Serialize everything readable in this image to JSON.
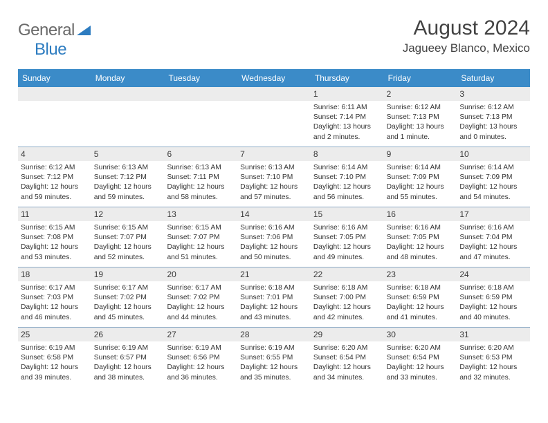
{
  "brand": {
    "part1": "General",
    "part2": "Blue"
  },
  "title": "August 2024",
  "location": "Jagueey Blanco, Mexico",
  "colors": {
    "header_bar": "#3b8bc8",
    "header_text": "#ffffff",
    "daynum_bg": "#ececec",
    "divider": "#8aa9c5",
    "logo_gray": "#6a6a6a",
    "logo_blue": "#2d7cc0"
  },
  "dow": [
    "Sunday",
    "Monday",
    "Tuesday",
    "Wednesday",
    "Thursday",
    "Friday",
    "Saturday"
  ],
  "weeks": [
    [
      null,
      null,
      null,
      null,
      {
        "n": "1",
        "sr": "6:11 AM",
        "ss": "7:14 PM",
        "dl": "13 hours and 2 minutes."
      },
      {
        "n": "2",
        "sr": "6:12 AM",
        "ss": "7:13 PM",
        "dl": "13 hours and 1 minute."
      },
      {
        "n": "3",
        "sr": "6:12 AM",
        "ss": "7:13 PM",
        "dl": "13 hours and 0 minutes."
      }
    ],
    [
      {
        "n": "4",
        "sr": "6:12 AM",
        "ss": "7:12 PM",
        "dl": "12 hours and 59 minutes."
      },
      {
        "n": "5",
        "sr": "6:13 AM",
        "ss": "7:12 PM",
        "dl": "12 hours and 59 minutes."
      },
      {
        "n": "6",
        "sr": "6:13 AM",
        "ss": "7:11 PM",
        "dl": "12 hours and 58 minutes."
      },
      {
        "n": "7",
        "sr": "6:13 AM",
        "ss": "7:10 PM",
        "dl": "12 hours and 57 minutes."
      },
      {
        "n": "8",
        "sr": "6:14 AM",
        "ss": "7:10 PM",
        "dl": "12 hours and 56 minutes."
      },
      {
        "n": "9",
        "sr": "6:14 AM",
        "ss": "7:09 PM",
        "dl": "12 hours and 55 minutes."
      },
      {
        "n": "10",
        "sr": "6:14 AM",
        "ss": "7:09 PM",
        "dl": "12 hours and 54 minutes."
      }
    ],
    [
      {
        "n": "11",
        "sr": "6:15 AM",
        "ss": "7:08 PM",
        "dl": "12 hours and 53 minutes."
      },
      {
        "n": "12",
        "sr": "6:15 AM",
        "ss": "7:07 PM",
        "dl": "12 hours and 52 minutes."
      },
      {
        "n": "13",
        "sr": "6:15 AM",
        "ss": "7:07 PM",
        "dl": "12 hours and 51 minutes."
      },
      {
        "n": "14",
        "sr": "6:16 AM",
        "ss": "7:06 PM",
        "dl": "12 hours and 50 minutes."
      },
      {
        "n": "15",
        "sr": "6:16 AM",
        "ss": "7:05 PM",
        "dl": "12 hours and 49 minutes."
      },
      {
        "n": "16",
        "sr": "6:16 AM",
        "ss": "7:05 PM",
        "dl": "12 hours and 48 minutes."
      },
      {
        "n": "17",
        "sr": "6:16 AM",
        "ss": "7:04 PM",
        "dl": "12 hours and 47 minutes."
      }
    ],
    [
      {
        "n": "18",
        "sr": "6:17 AM",
        "ss": "7:03 PM",
        "dl": "12 hours and 46 minutes."
      },
      {
        "n": "19",
        "sr": "6:17 AM",
        "ss": "7:02 PM",
        "dl": "12 hours and 45 minutes."
      },
      {
        "n": "20",
        "sr": "6:17 AM",
        "ss": "7:02 PM",
        "dl": "12 hours and 44 minutes."
      },
      {
        "n": "21",
        "sr": "6:18 AM",
        "ss": "7:01 PM",
        "dl": "12 hours and 43 minutes."
      },
      {
        "n": "22",
        "sr": "6:18 AM",
        "ss": "7:00 PM",
        "dl": "12 hours and 42 minutes."
      },
      {
        "n": "23",
        "sr": "6:18 AM",
        "ss": "6:59 PM",
        "dl": "12 hours and 41 minutes."
      },
      {
        "n": "24",
        "sr": "6:18 AM",
        "ss": "6:59 PM",
        "dl": "12 hours and 40 minutes."
      }
    ],
    [
      {
        "n": "25",
        "sr": "6:19 AM",
        "ss": "6:58 PM",
        "dl": "12 hours and 39 minutes."
      },
      {
        "n": "26",
        "sr": "6:19 AM",
        "ss": "6:57 PM",
        "dl": "12 hours and 38 minutes."
      },
      {
        "n": "27",
        "sr": "6:19 AM",
        "ss": "6:56 PM",
        "dl": "12 hours and 36 minutes."
      },
      {
        "n": "28",
        "sr": "6:19 AM",
        "ss": "6:55 PM",
        "dl": "12 hours and 35 minutes."
      },
      {
        "n": "29",
        "sr": "6:20 AM",
        "ss": "6:54 PM",
        "dl": "12 hours and 34 minutes."
      },
      {
        "n": "30",
        "sr": "6:20 AM",
        "ss": "6:54 PM",
        "dl": "12 hours and 33 minutes."
      },
      {
        "n": "31",
        "sr": "6:20 AM",
        "ss": "6:53 PM",
        "dl": "12 hours and 32 minutes."
      }
    ]
  ],
  "labels": {
    "sunrise": "Sunrise: ",
    "sunset": "Sunset: ",
    "daylight": "Daylight: "
  }
}
